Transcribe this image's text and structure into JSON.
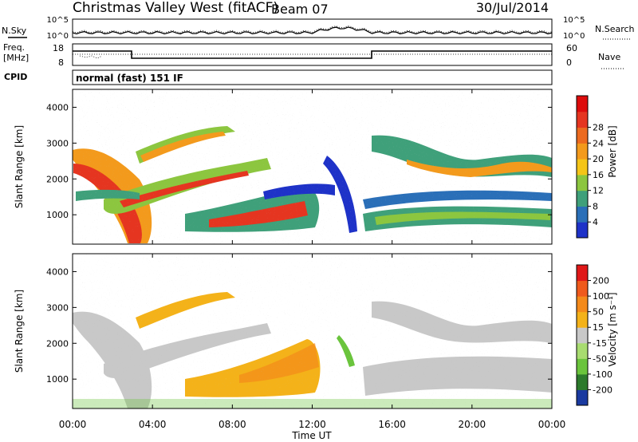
{
  "header": {
    "radar": "Christmas Valley West (fitACF)",
    "beam": "Beam 07",
    "date": "30/Jul/2014"
  },
  "noise_panel": {
    "left_label": "N.Sky",
    "right_label": "N.Search",
    "left_ticks": [
      "10^5",
      "10^0"
    ],
    "right_ticks": [
      "10^5",
      "10^0"
    ]
  },
  "freq_panel": {
    "left_label_1": "Freq.",
    "left_label_2": "[MHz]",
    "right_label": "Nave",
    "left_ticks": [
      "18",
      "8"
    ],
    "right_ticks": [
      "60",
      "0"
    ]
  },
  "cpid": {
    "label": "CPID",
    "mode": "normal (fast) 151 IF"
  },
  "chart_data": [
    {
      "type": "heatmap",
      "name_text": "Power",
      "ylabel": "Slant Range [km]",
      "y_ticks": [
        "1000",
        "2000",
        "3000",
        "4000"
      ],
      "ylim": [
        180,
        4500
      ],
      "colorbar_label": "Power [dB]",
      "colorbar_ticks": [
        "4",
        "8",
        "12",
        "16",
        "20",
        "24",
        "28"
      ],
      "colorbar_colors": [
        "#1e32c8",
        "#2a6fb8",
        "#3fa07a",
        "#8cc63f",
        "#f5c518",
        "#f39a1c",
        "#ec6a1f",
        "#e53520",
        "#dd0c0c"
      ]
    },
    {
      "type": "heatmap",
      "name_text": "Velocity",
      "ylabel": "Slant Range [km]",
      "y_ticks": [
        "1000",
        "2000",
        "3000",
        "4000"
      ],
      "ylim": [
        180,
        4500
      ],
      "colorbar_label": "Velocity [m s⁻¹]",
      "colorbar_ticks": [
        "200",
        "100",
        "50",
        "15",
        "-15",
        "-50",
        "-100",
        "-200"
      ],
      "colorbar_colors": [
        "#1a3aa0",
        "#2c7a2c",
        "#6ac43c",
        "#a8dc70",
        "#c8c8c8",
        "#f4b219",
        "#f48a1a",
        "#ef5a1c",
        "#e01818"
      ]
    }
  ],
  "x_axis": {
    "xlabel": "Time UT",
    "tick_labels": [
      "00:00",
      "04:00",
      "08:00",
      "12:00",
      "16:00",
      "20:00",
      "00:00"
    ]
  }
}
